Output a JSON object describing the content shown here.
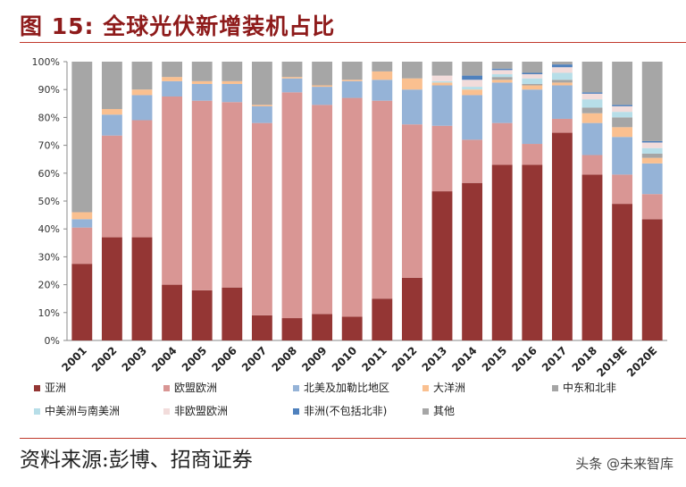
{
  "title": "图 15:  全球光伏新增装机占比",
  "source": "资料来源:彭博、招商证券",
  "watermark": "头条 @未来智库",
  "chart_data": {
    "type": "bar",
    "stacked": true,
    "categories": [
      "2001",
      "2002",
      "2003",
      "2004",
      "2005",
      "2006",
      "2007",
      "2008",
      "2009",
      "2010",
      "2011",
      "2012",
      "2013",
      "2014",
      "2015",
      "2016",
      "2017",
      "2018",
      "2019E",
      "2020E"
    ],
    "ylim": [
      0,
      100
    ],
    "yticks": [
      "0%",
      "10%",
      "20%",
      "30%",
      "40%",
      "50%",
      "60%",
      "70%",
      "80%",
      "90%",
      "100%"
    ],
    "grid": false,
    "legend_position": "bottom",
    "series": [
      {
        "name": "亚洲",
        "color": "#943634",
        "values": [
          27.5,
          37,
          37,
          20,
          18,
          19,
          9,
          8,
          9.5,
          8.5,
          15,
          22.5,
          53.5,
          56.5,
          63,
          63,
          74.5,
          59.5,
          49,
          43.5
        ]
      },
      {
        "name": "欧盟欧洲",
        "color": "#d99694",
        "values": [
          13,
          36.5,
          42,
          67.5,
          68,
          66.5,
          69,
          81,
          75,
          78.5,
          71,
          55,
          23.5,
          15.5,
          15,
          7.5,
          5,
          7,
          10.5,
          9
        ]
      },
      {
        "name": "北美及加勒比地区",
        "color": "#95b3d7",
        "values": [
          3,
          7.5,
          9,
          5.5,
          6,
          6.5,
          6,
          5,
          6.5,
          6,
          7.5,
          12.5,
          14.5,
          16,
          14.5,
          19.5,
          12,
          11.5,
          13.5,
          11
        ]
      },
      {
        "name": "大洋洲",
        "color": "#fac090",
        "values": [
          2.5,
          2,
          2,
          1.5,
          1,
          1,
          0.5,
          0.5,
          0.5,
          0.5,
          3,
          4,
          1,
          2,
          1,
          1.5,
          1,
          3.5,
          3.5,
          2
        ]
      },
      {
        "name": "中东和北非",
        "color": "#a5a5a5",
        "values": [
          0,
          0,
          0,
          0,
          0,
          0,
          0,
          0,
          0,
          0,
          0,
          0,
          0,
          0,
          1,
          0.5,
          1,
          2,
          3.5,
          1.5
        ]
      },
      {
        "name": "中美洲与南美洲",
        "color": "#b7dee8",
        "values": [
          0,
          0,
          0,
          0,
          0,
          0,
          0,
          0,
          0,
          0,
          0,
          0,
          0.5,
          1,
          1,
          2,
          2.5,
          3,
          2,
          2
        ]
      },
      {
        "name": "非欧盟欧洲",
        "color": "#f2dcdb",
        "values": [
          0,
          0,
          0,
          0,
          0,
          0,
          0,
          0,
          0,
          0,
          0,
          0,
          2,
          2.5,
          1.5,
          1.5,
          2,
          2,
          2,
          2
        ]
      },
      {
        "name": "非洲(不包括北非)",
        "color": "#4f81bd",
        "values": [
          0,
          0,
          0,
          0,
          0,
          0,
          0,
          0,
          0,
          0,
          0,
          0,
          0,
          1.5,
          0.5,
          0.5,
          1,
          0.5,
          0.5,
          0.5
        ]
      },
      {
        "name": "其他",
        "color": "#a6a6a6",
        "values": [
          54,
          17,
          10,
          5.5,
          7,
          7,
          15.5,
          5.5,
          8.5,
          6.5,
          3.5,
          6,
          5,
          5,
          2.5,
          4,
          1,
          11,
          15.5,
          28.5
        ]
      }
    ]
  }
}
